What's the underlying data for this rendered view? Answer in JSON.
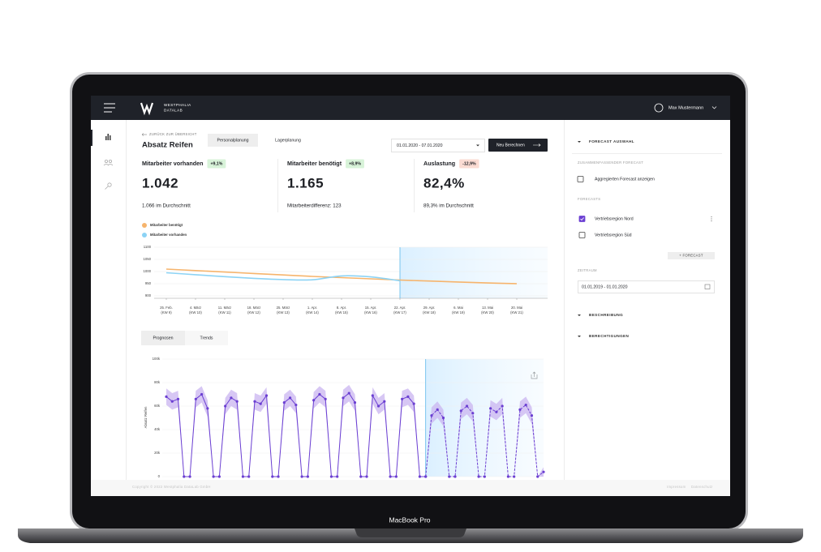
{
  "device": {
    "label": "MacBook Pro"
  },
  "header": {
    "logo": [
      "WESTPHALIA",
      "DATALAB"
    ],
    "user": "Max Mustermann"
  },
  "page": {
    "back": "ZURÜCK ZUR ÜBERSICHT",
    "title": "Absatz Reifen",
    "tabs": [
      "Personalplanung",
      "Lagerplanung"
    ],
    "date_range": "01.01.2020 - 07.01.2020",
    "button": "Neu Berechnen"
  },
  "kpis": [
    {
      "label": "Mitarbeiter vorhanden",
      "change": "+9,1%",
      "badge_color": "#d8f3d9",
      "value": "1.042",
      "note": "1.066 im Durchschnitt"
    },
    {
      "label": "Mitarbeiter benötigt",
      "change": "+8,9%",
      "badge_color": "#d8f3d9",
      "value": "1.165",
      "note": "Mitarbeiterdifferenz: 123"
    },
    {
      "label": "Auslastung",
      "change": "-12,9%",
      "badge_color": "#fbdcd3",
      "value": "82,4%",
      "note": "89,3% im Durchschnitt"
    }
  ],
  "staff_chart": {
    "type": "line",
    "categories": [
      [
        "25. Feb.",
        "(KW 9)"
      ],
      [
        "4. März",
        "(KW 10)"
      ],
      [
        "11. März",
        "(KW 11)"
      ],
      [
        "18. März",
        "(KW 12)"
      ],
      [
        "25. März",
        "(KW 13)"
      ],
      [
        "1. Apr.",
        "(KW 14)"
      ],
      [
        "8. Apr.",
        "(KW 15)"
      ],
      [
        "15. Apr.",
        "(KW 16)"
      ],
      [
        "22. Apr.",
        "(KW 17)"
      ],
      [
        "29. Apr.",
        "(KW 18)"
      ],
      [
        "6. Mai",
        "(KW 19)"
      ],
      [
        "13. Mai",
        "(KW 20)"
      ],
      [
        "20. Mai",
        "(KW 21)"
      ]
    ],
    "series": [
      {
        "name": "Mitarbeiter benötigt",
        "color": "#f6b46c",
        "values": [
          1010,
          1004,
          998,
          992,
          986,
          980,
          975,
          970,
          965,
          961,
          957,
          953,
          950
        ]
      },
      {
        "name": "Mitarbeiter vorhanden",
        "color": "#8cd3f5",
        "values": [
          995,
          987,
          979,
          972,
          967,
          966,
          982,
          978,
          962,
          null,
          null,
          null,
          null
        ]
      }
    ],
    "ylim": [
      900,
      1100
    ],
    "yticks": [
      900,
      950,
      1000,
      1050,
      1100
    ],
    "grid": true
  },
  "forecast_tabs": [
    "Prognosen",
    "Trends"
  ],
  "forecast_chart": {
    "type": "line",
    "ylabel": "Absatz Reifen",
    "color": "#6b3fd2",
    "band_color": "#c9b4f0",
    "ylim": [
      0,
      100000
    ],
    "yticks": [
      0,
      {
        "value": 20000,
        "label": "20k"
      },
      {
        "value": 40000,
        "label": "40k"
      },
      {
        "value": 60000,
        "label": "60k"
      },
      {
        "value": 80000,
        "label": "80k"
      },
      {
        "value": 100000,
        "label": "100k"
      }
    ],
    "history": [
      68000,
      64000,
      66000,
      0,
      0,
      66000,
      70000,
      58000,
      0,
      0,
      60000,
      67000,
      64000,
      0,
      0,
      64000,
      62000,
      69000,
      0,
      0,
      63000,
      67000,
      61000,
      0,
      0,
      65000,
      70000,
      66000,
      0,
      0,
      67000,
      71000,
      63000,
      0,
      0,
      69000,
      60000,
      64000,
      0,
      0,
      66000,
      68000,
      62000,
      0,
      0,
      null,
      null,
      null,
      null,
      null,
      null,
      null,
      null,
      null,
      null,
      null,
      null,
      null,
      null,
      null,
      null,
      null,
      null,
      null,
      null
    ],
    "forecast": [
      null,
      null,
      null,
      null,
      null,
      null,
      null,
      null,
      null,
      null,
      null,
      null,
      null,
      null,
      null,
      null,
      null,
      null,
      null,
      null,
      null,
      null,
      null,
      null,
      null,
      null,
      null,
      null,
      null,
      null,
      null,
      null,
      null,
      null,
      null,
      null,
      null,
      null,
      null,
      null,
      null,
      null,
      null,
      null,
      0,
      52000,
      57000,
      50000,
      0,
      0,
      56000,
      60000,
      54000,
      0,
      0,
      58000,
      55000,
      60000,
      0,
      0,
      57000,
      61000,
      52000,
      0,
      4000
    ],
    "upper": [
      75000,
      71000,
      73000,
      0,
      0,
      73000,
      77000,
      65000,
      0,
      0,
      67000,
      74000,
      71000,
      0,
      0,
      71000,
      69000,
      76000,
      0,
      0,
      70000,
      74000,
      68000,
      0,
      0,
      72000,
      77000,
      73000,
      0,
      0,
      74000,
      78000,
      70000,
      0,
      0,
      76000,
      67000,
      71000,
      0,
      0,
      73000,
      75000,
      69000,
      0,
      0,
      59000,
      64000,
      57000,
      0,
      0,
      63000,
      67000,
      61000,
      0,
      0,
      65000,
      62000,
      67000,
      0,
      0,
      64000,
      68000,
      59000,
      0,
      8000
    ],
    "lower": [
      61000,
      57000,
      59000,
      0,
      0,
      59000,
      63000,
      51000,
      0,
      0,
      53000,
      60000,
      57000,
      0,
      0,
      57000,
      55000,
      62000,
      0,
      0,
      56000,
      60000,
      54000,
      0,
      0,
      58000,
      63000,
      59000,
      0,
      0,
      60000,
      64000,
      56000,
      0,
      0,
      62000,
      53000,
      57000,
      0,
      0,
      59000,
      61000,
      55000,
      0,
      0,
      45000,
      50000,
      43000,
      0,
      0,
      49000,
      53000,
      47000,
      0,
      0,
      51000,
      48000,
      53000,
      0,
      0,
      50000,
      54000,
      45000,
      0,
      0
    ]
  },
  "sidebar": {
    "title": "FORECAST AUSWAHL",
    "summary_heading": "ZUSAMMENFASSENDER FORECAST",
    "aggregate": {
      "label": "Aggregierten Forecast anzeigen",
      "checked": false
    },
    "forecasts_heading": "FORECASTS",
    "forecasts": [
      {
        "label": "Vertriebsregion Nord",
        "checked": true
      },
      {
        "label": "Vertriebsregion Süd",
        "checked": false
      }
    ],
    "add_button": "+ FORECAST",
    "period_heading": "ZEITRAUM",
    "period": "01.01.2019 - 01.01.2020",
    "sections": [
      "BESCHREIBUNG",
      "BERECHTIGUNGEN"
    ]
  },
  "footer": {
    "copyright": "Copyright © 2022 Westphalia DataLab GmbH",
    "links": [
      "Impressum",
      "Datenschutz"
    ]
  }
}
